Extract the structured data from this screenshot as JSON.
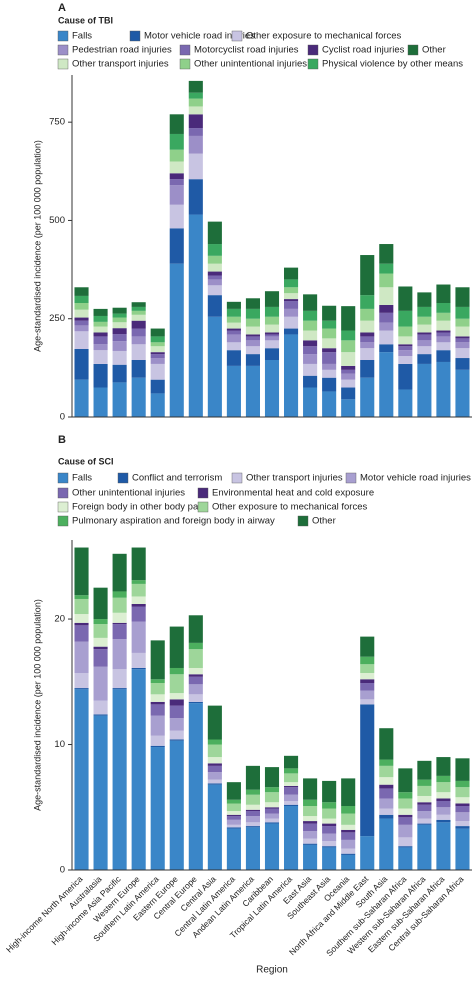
{
  "chart_data": [
    {
      "type": "bar",
      "stacked": true,
      "panel": "A",
      "legend_title": "Cause of TBI",
      "ylabel": "Age-standardised incidence (per 100 000 population)",
      "ylim": [
        0,
        870
      ],
      "yticks": [
        0,
        250,
        500,
        750
      ],
      "series": [
        {
          "name": "Falls",
          "color": "#3a86c8",
          "values": [
            95,
            75,
            88,
            100,
            60,
            390,
            515,
            255,
            130,
            130,
            145,
            210,
            75,
            65,
            45,
            100,
            165,
            70,
            135,
            140,
            120
          ]
        },
        {
          "name": "Motor vehicle road injuries",
          "color": "#1f5aa6",
          "values": [
            78,
            60,
            45,
            45,
            35,
            90,
            90,
            55,
            40,
            30,
            30,
            15,
            30,
            35,
            30,
            45,
            20,
            65,
            25,
            30,
            30
          ]
        },
        {
          "name": "Other exposure to mechanical forces",
          "color": "#c8c4e2",
          "values": [
            45,
            35,
            35,
            40,
            40,
            60,
            65,
            25,
            20,
            20,
            20,
            30,
            30,
            20,
            20,
            30,
            35,
            20,
            20,
            20,
            25
          ]
        },
        {
          "name": "Pedestrian road injuries",
          "color": "#9c8fc8",
          "values": [
            15,
            15,
            25,
            20,
            15,
            50,
            45,
            15,
            20,
            15,
            10,
            20,
            25,
            15,
            15,
            15,
            20,
            15,
            15,
            15,
            15
          ]
        },
        {
          "name": "Motorcyclist road injuries",
          "color": "#7a68b0",
          "values": [
            12,
            20,
            18,
            20,
            10,
            15,
            20,
            10,
            10,
            10,
            5,
            20,
            20,
            30,
            10,
            15,
            25,
            10,
            15,
            10,
            10
          ]
        },
        {
          "name": "Cyclist road injuries",
          "color": "#4a2a7a",
          "values": [
            8,
            10,
            15,
            20,
            5,
            15,
            35,
            10,
            5,
            5,
            5,
            5,
            15,
            10,
            10,
            10,
            20,
            5,
            5,
            5,
            5
          ]
        },
        {
          "name": "Other transport injuries",
          "color": "#cfe8c4",
          "values": [
            20,
            15,
            15,
            15,
            15,
            30,
            20,
            20,
            15,
            20,
            20,
            15,
            25,
            25,
            35,
            30,
            45,
            20,
            20,
            25,
            25
          ]
        },
        {
          "name": "Other unintentional injuries",
          "color": "#8fd08a",
          "values": [
            17,
            12,
            12,
            10,
            10,
            30,
            20,
            20,
            15,
            20,
            20,
            15,
            25,
            25,
            30,
            30,
            35,
            25,
            20,
            20,
            20
          ]
        },
        {
          "name": "Physical violence by other means",
          "color": "#3aa860",
          "values": [
            18,
            15,
            10,
            10,
            15,
            40,
            15,
            30,
            20,
            25,
            25,
            20,
            25,
            20,
            25,
            35,
            25,
            40,
            25,
            25,
            30
          ]
        },
        {
          "name": "Other",
          "color": "#1e6e3a",
          "values": [
            22,
            18,
            15,
            12,
            20,
            50,
            30,
            57,
            18,
            27,
            40,
            30,
            42,
            38,
            62,
            102,
            50,
            62,
            37,
            47,
            50
          ]
        }
      ]
    },
    {
      "type": "bar",
      "stacked": true,
      "panel": "B",
      "legend_title": "Cause of SCI",
      "ylabel": "Age-standardised incidence (per 100 000 population)",
      "xlabel": "Region",
      "ylim": [
        0,
        26.3
      ],
      "yticks": [
        0,
        10,
        20
      ],
      "categories": [
        "High-income North America",
        "Australasia",
        "High-income Asia Pacific",
        "Western Europe",
        "Southern Latin America",
        "Eastern Europe",
        "Central Europe",
        "Central Asia",
        "Central Latin America",
        "Andean Latin America",
        "Caribbean",
        "Tropical Latin America",
        "East Asia",
        "Southeast Asia",
        "Oceania",
        "North Africa and Middle East",
        "South Asia",
        "Southern sub-Saharan Africa",
        "Western sub-Saharan Africa",
        "Eastern sub-Saharan Africa",
        "Central sub-Saharan Africa"
      ],
      "series": [
        {
          "name": "Falls",
          "color": "#3a86c8",
          "values": [
            14.4,
            12.3,
            14.4,
            16.0,
            9.8,
            10.3,
            13.3,
            6.8,
            3.3,
            3.4,
            3.7,
            5.1,
            2.0,
            1.8,
            1.2,
            2.7,
            4.1,
            1.8,
            3.6,
            3.8,
            3.3
          ]
        },
        {
          "name": "Conflict and terrorism",
          "color": "#1f5aa6",
          "values": [
            0.1,
            0.1,
            0.1,
            0.1,
            0.1,
            0.1,
            0.1,
            0.1,
            0.1,
            0.1,
            0.1,
            0.1,
            0.1,
            0.1,
            0.1,
            10.5,
            0.3,
            0.1,
            0.1,
            0.2,
            0.2
          ]
        },
        {
          "name": "Other transport injuries",
          "color": "#c8c4e2",
          "values": [
            1.2,
            1.1,
            1.5,
            1.2,
            0.8,
            0.7,
            0.6,
            0.3,
            0.2,
            0.3,
            0.3,
            0.3,
            0.4,
            0.4,
            0.4,
            0.4,
            0.5,
            0.7,
            0.4,
            0.4,
            0.4
          ]
        },
        {
          "name": "Motor vehicle road injuries",
          "color": "#a89fd0",
          "values": [
            2.5,
            2.7,
            2.4,
            2.5,
            1.6,
            1.0,
            0.8,
            0.6,
            0.4,
            0.5,
            0.4,
            0.5,
            0.6,
            0.6,
            0.7,
            0.7,
            0.8,
            1.0,
            0.6,
            0.6,
            0.7
          ]
        },
        {
          "name": "Other unintentional injuries",
          "color": "#7a68b0",
          "values": [
            1.3,
            1.4,
            1.2,
            1.2,
            0.9,
            1.0,
            0.6,
            0.5,
            0.3,
            0.4,
            0.4,
            0.6,
            0.6,
            0.6,
            0.6,
            0.6,
            0.8,
            0.6,
            0.5,
            0.5,
            0.5
          ]
        },
        {
          "name": "Environmental heat and cold exposure",
          "color": "#4a2a7a",
          "values": [
            0.2,
            0.2,
            0.1,
            0.2,
            0.2,
            0.5,
            0.2,
            0.2,
            0.1,
            0.1,
            0.1,
            0.1,
            0.2,
            0.2,
            0.2,
            0.3,
            0.3,
            0.2,
            0.2,
            0.2,
            0.2
          ]
        },
        {
          "name": "Foreign body in other body part",
          "color": "#dcefd2",
          "values": [
            0.7,
            0.7,
            0.8,
            0.6,
            0.6,
            0.5,
            0.5,
            0.5,
            0.3,
            0.4,
            0.4,
            0.3,
            0.4,
            0.4,
            0.4,
            0.5,
            0.6,
            0.5,
            0.5,
            0.5,
            0.5
          ]
        },
        {
          "name": "Other exposure to mechanical forces",
          "color": "#9ed69a",
          "values": [
            1.2,
            1.1,
            1.2,
            1.0,
            0.9,
            1.5,
            1.5,
            1.0,
            0.6,
            0.8,
            0.8,
            0.7,
            0.8,
            0.8,
            0.9,
            0.7,
            0.9,
            0.8,
            0.8,
            0.8,
            0.8
          ]
        },
        {
          "name": "Pulmonary aspiration and foreign body in airway",
          "color": "#4caf5e",
          "values": [
            0.3,
            0.4,
            0.5,
            0.3,
            0.3,
            0.5,
            0.5,
            0.4,
            0.3,
            0.4,
            0.4,
            0.4,
            0.5,
            0.5,
            0.6,
            0.6,
            0.5,
            0.5,
            0.5,
            0.5,
            0.5
          ]
        },
        {
          "name": "Other",
          "color": "#1e6e3a",
          "values": [
            3.8,
            2.5,
            3.0,
            2.6,
            3.1,
            3.3,
            2.2,
            2.7,
            1.4,
            1.9,
            1.6,
            1.0,
            1.7,
            1.7,
            2.2,
            1.6,
            2.5,
            1.9,
            1.5,
            1.5,
            1.8
          ]
        }
      ]
    }
  ]
}
